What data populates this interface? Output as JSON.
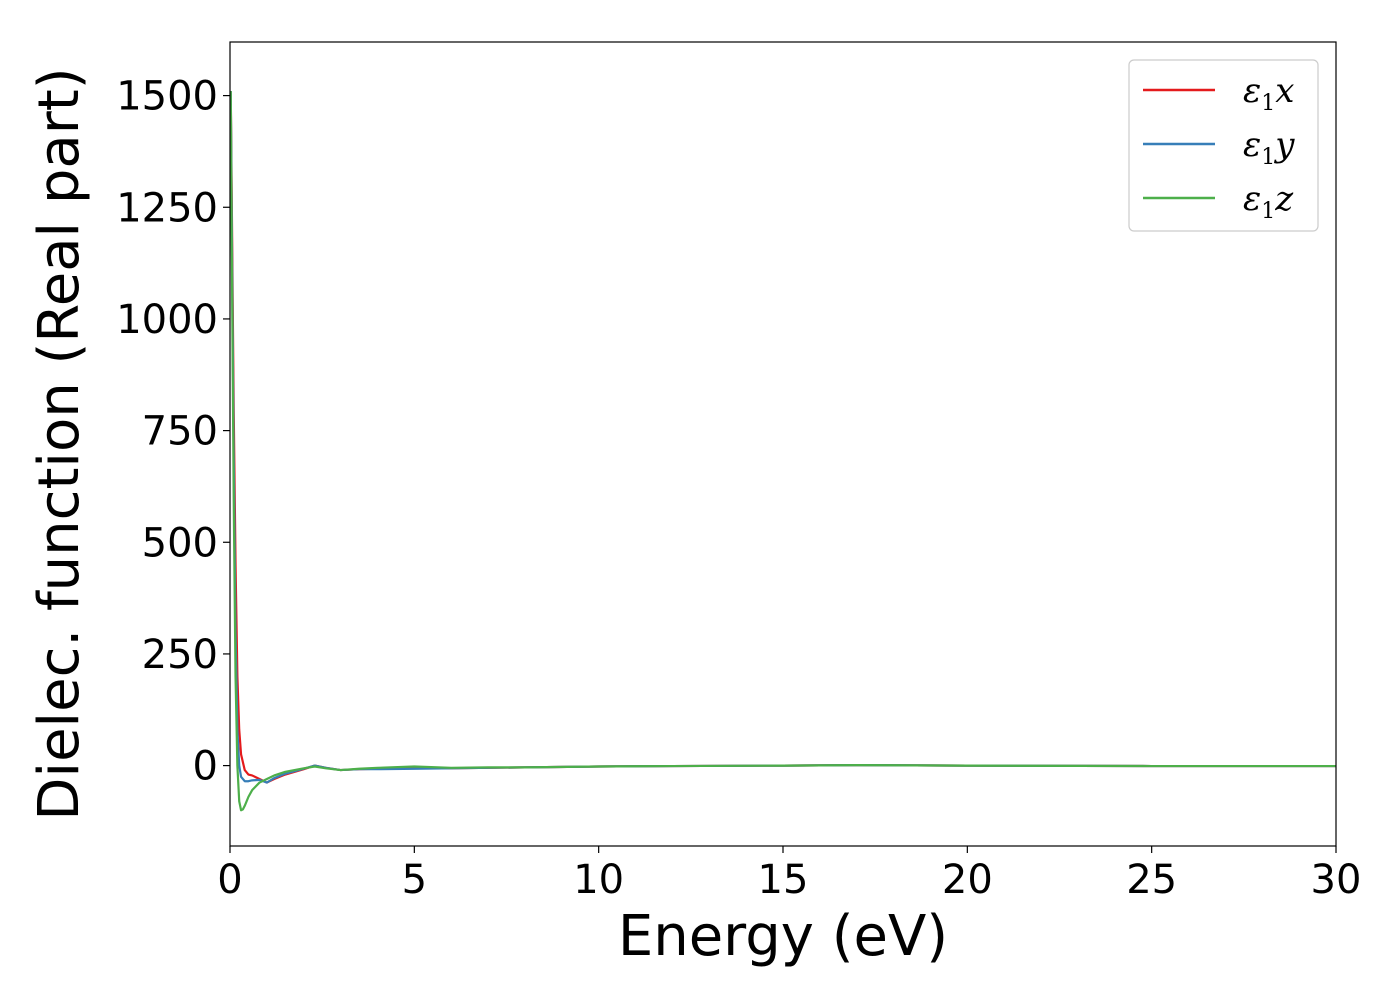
{
  "chart_data": {
    "type": "line",
    "xlabel": "Energy (eV)",
    "ylabel": "Dielec. function (Real part)",
    "xlim": [
      0,
      30
    ],
    "ylim": [
      -180,
      1620
    ],
    "xticks": [
      0,
      5,
      10,
      15,
      20,
      25,
      30
    ],
    "yticks": [
      0,
      250,
      500,
      750,
      1000,
      1250,
      1500
    ],
    "grid": false,
    "legend_position": "top-right",
    "series": [
      {
        "name": "ε1x",
        "name_base": "ε",
        "name_sub": "1",
        "name_suffix": "x",
        "color": "#e41a1c",
        "x": [
          0.02,
          0.05,
          0.1,
          0.15,
          0.2,
          0.25,
          0.3,
          0.4,
          0.5,
          0.6,
          0.8,
          1.0,
          1.2,
          1.5,
          2.0,
          2.3,
          2.6,
          3.0,
          3.5,
          4.0,
          5.0,
          6.0,
          7.0,
          8.0,
          10.0,
          12.0,
          15.0,
          17.0,
          20.0,
          25.0,
          30.0
        ],
        "y": [
          1510,
          1250,
          800,
          450,
          200,
          80,
          25,
          -10,
          -20,
          -22,
          -30,
          -38,
          -30,
          -20,
          -8,
          0,
          -5,
          -10,
          -8,
          -7,
          -5,
          -6,
          -5,
          -4,
          -2,
          -1,
          0,
          1,
          0,
          -1,
          -1
        ]
      },
      {
        "name": "ε1y",
        "name_base": "ε",
        "name_sub": "1",
        "name_suffix": "y",
        "color": "#377eb8",
        "x": [
          0.02,
          0.05,
          0.1,
          0.15,
          0.2,
          0.25,
          0.3,
          0.4,
          0.5,
          0.6,
          0.8,
          1.0,
          1.2,
          1.5,
          2.0,
          2.3,
          2.6,
          3.0,
          3.5,
          4.0,
          5.0,
          6.0,
          7.0,
          8.0,
          10.0,
          12.0,
          15.0,
          17.0,
          20.0,
          25.0,
          30.0
        ],
        "y": [
          1510,
          1200,
          700,
          300,
          80,
          0,
          -25,
          -35,
          -35,
          -33,
          -32,
          -38,
          -28,
          -18,
          -7,
          0,
          -5,
          -10,
          -8,
          -8,
          -7,
          -6,
          -5,
          -4,
          -2,
          -1,
          0,
          1,
          0,
          -1,
          -1
        ]
      },
      {
        "name": "ε1z",
        "name_base": "ε",
        "name_sub": "1",
        "name_suffix": "z",
        "color": "#4daf4a",
        "x": [
          0.02,
          0.05,
          0.1,
          0.15,
          0.2,
          0.25,
          0.3,
          0.35,
          0.4,
          0.5,
          0.6,
          0.8,
          1.0,
          1.2,
          1.5,
          2.0,
          2.3,
          2.6,
          3.0,
          3.5,
          4.0,
          5.0,
          6.0,
          7.0,
          8.0,
          10.0,
          12.0,
          15.0,
          17.0,
          20.0,
          25.0,
          30.0
        ],
        "y": [
          1510,
          1150,
          600,
          200,
          0,
          -80,
          -100,
          -98,
          -90,
          -70,
          -55,
          -38,
          -30,
          -22,
          -14,
          -6,
          -2,
          -6,
          -10,
          -7,
          -5,
          -2,
          -5,
          -4,
          -4,
          -2,
          -1,
          0,
          1,
          0,
          -1,
          -1
        ]
      }
    ]
  }
}
